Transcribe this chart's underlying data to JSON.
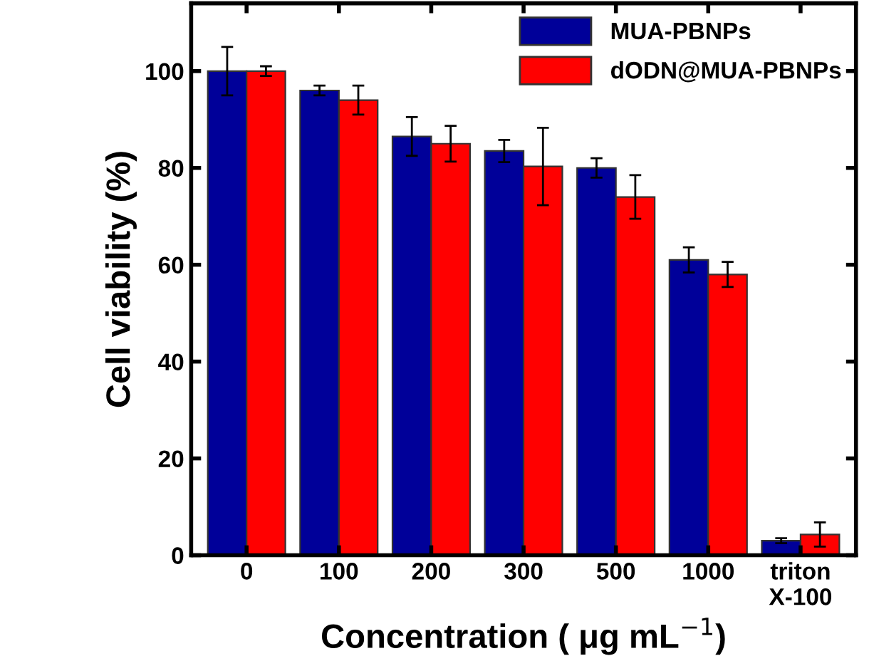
{
  "chart_data": {
    "type": "bar",
    "xlabel": "Concentration ( μg mL$^{−1}$)",
    "ylabel": "Cell viability (%)",
    "categories": [
      "0",
      "100",
      "200",
      "300",
      "500",
      "1000",
      "triton\nX-100"
    ],
    "series": [
      {
        "name": "MUA-PBNPs",
        "color": "#000099",
        "values": [
          100,
          96,
          86.5,
          83.5,
          80,
          61,
          3
        ],
        "errors": [
          5,
          1,
          4,
          2.3,
          2,
          2.6,
          0.5
        ]
      },
      {
        "name": "dODN@MUA-PBNPs",
        "color": "#ff0000",
        "values": [
          100,
          94,
          85,
          80.3,
          74,
          58,
          4.3
        ],
        "errors": [
          1,
          3,
          3.7,
          8,
          4.5,
          2.6,
          2.5
        ]
      }
    ],
    "ylim": [
      0,
      114
    ],
    "yticks": [
      0,
      20,
      40,
      60,
      80,
      100
    ],
    "grid": false,
    "legend": "top right"
  }
}
